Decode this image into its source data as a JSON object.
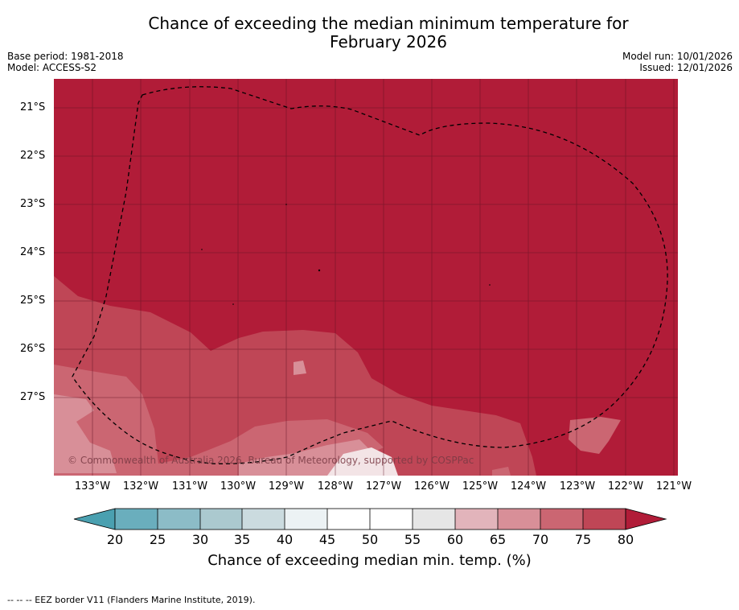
{
  "title": {
    "line1": "Chance of exceeding the median minimum temperature for",
    "line2": "February 2026"
  },
  "meta": {
    "base_period": "Base period: 1981-2018",
    "model": "Model: ACCESS-S2",
    "model_run": "Model run: 10/01/2026",
    "issued": "Issued: 12/01/2026"
  },
  "map": {
    "lat_labels": [
      "21°S",
      "22°S",
      "23°S",
      "24°S",
      "25°S",
      "26°S",
      "27°S"
    ],
    "lon_labels": [
      "133°W",
      "132°W",
      "131°W",
      "130°W",
      "129°W",
      "128°W",
      "127°W",
      "126°W",
      "125°W",
      "124°W",
      "123°W",
      "122°W",
      "121°W"
    ],
    "copyright": "© Commonwealth of Australia 2026, Bureau of Meteorology, supported by COSPPac",
    "dominant_color": "#b11c38"
  },
  "colorbar": {
    "ticks": [
      "20",
      "25",
      "30",
      "35",
      "40",
      "45",
      "50",
      "55",
      "60",
      "65",
      "70",
      "75",
      "80"
    ],
    "colors": [
      "#4aa0b0",
      "#6aaebd",
      "#8cbcc7",
      "#abc9cf",
      "#cbdbdf",
      "#ecf2f4",
      "#ffffff",
      "#ffffff",
      "#e6e6e6",
      "#e2b4bb",
      "#d88f98",
      "#cb6672",
      "#bf4656",
      "#b11c38"
    ],
    "label": "Chance of exceeding median min. temp. (%)"
  },
  "footer": "--  --  -- EEZ border V11 (Flanders Marine Institute, 2019)."
}
